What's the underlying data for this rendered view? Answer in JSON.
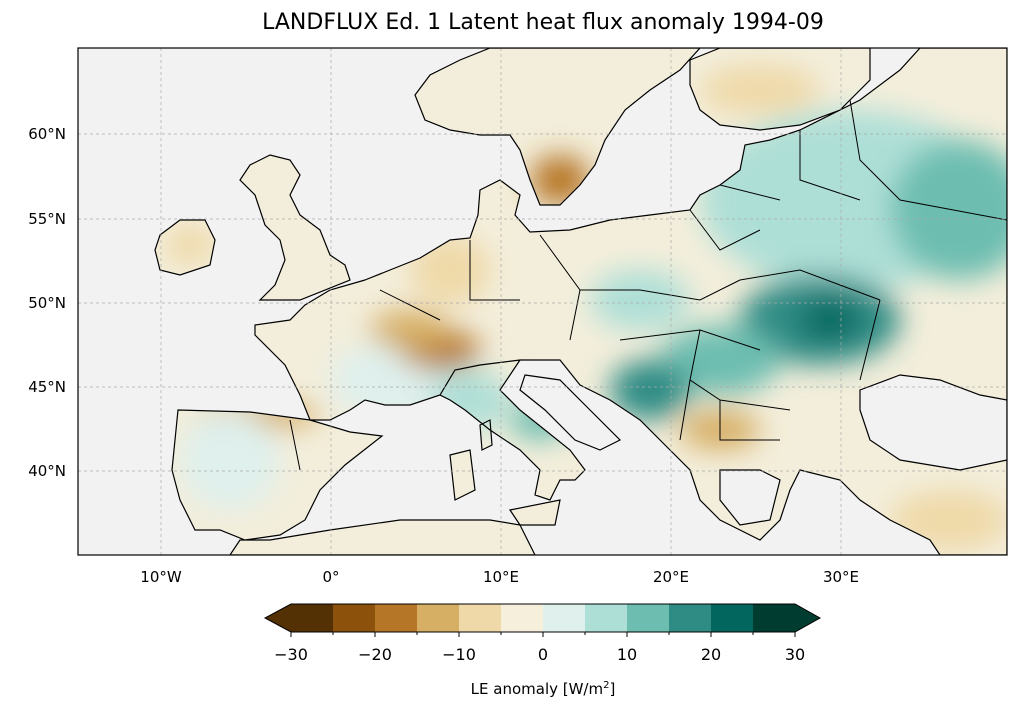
{
  "title": "LANDFLUX Ed. 1 Latent heat flux anomaly 1994-09",
  "map": {
    "ocean_color": "#f2f2f2",
    "lon_ticks": [
      "10°W",
      "0°",
      "10°E",
      "20°E",
      "30°E"
    ],
    "lat_ticks": [
      "60°N",
      "55°N",
      "50°N",
      "45°N",
      "40°N"
    ],
    "extent": {
      "lon": [
        -15,
        40
      ],
      "lat": [
        35,
        65
      ]
    }
  },
  "colorbar": {
    "ticks": [
      "−30",
      "−20",
      "−10",
      "0",
      "10",
      "20",
      "30"
    ],
    "levels": [
      -30,
      -25,
      -20,
      -15,
      -10,
      -5,
      0,
      5,
      10,
      15,
      20,
      25,
      30
    ],
    "colors": [
      "#543005",
      "#8c510a",
      "#b67628",
      "#d6ae64",
      "#efd9a8",
      "#f5efdc",
      "#dff0ed",
      "#aedfd7",
      "#6dbeb1",
      "#2e8c85",
      "#02665e",
      "#003c30"
    ],
    "extend": "both",
    "label_prefix": "LE anomaly [W/m",
    "label_sup": "2",
    "label_suffix": "]"
  }
}
